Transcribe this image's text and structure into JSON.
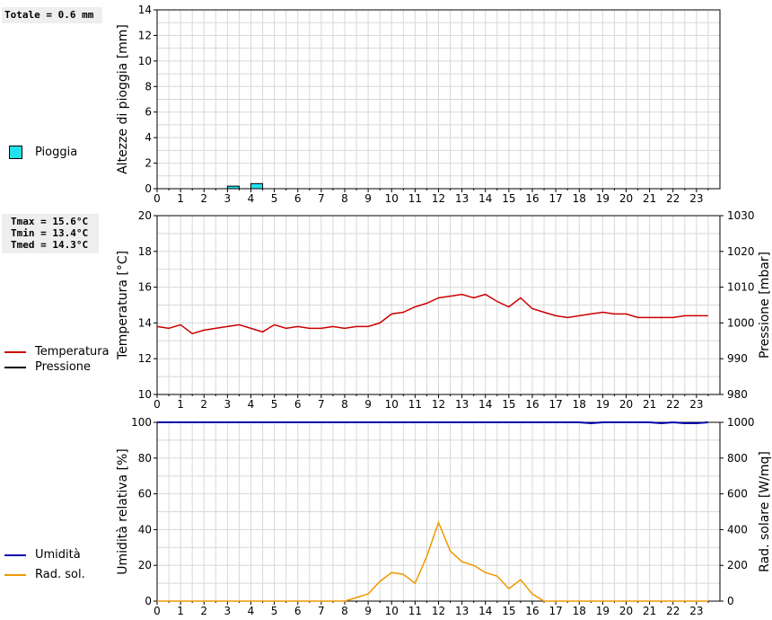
{
  "summary": {
    "rain_total": "Totale = 0.6 mm",
    "tmax": "Tmax = 15.6°C",
    "tmin": "Tmin = 13.4°C",
    "tmed": "Tmed = 14.3°C"
  },
  "legend": {
    "rain": "Pioggia",
    "temperature": "Temperatura",
    "pressure": "Pressione",
    "humidity": "Umidità",
    "solar": "Rad. sol."
  },
  "colors": {
    "rain": "#22e0ee",
    "temperature": "#cc0000",
    "pressure": "#000000",
    "humidity": "#0000aa",
    "solar": "#ee9900"
  },
  "chart_data": [
    {
      "type": "bar",
      "ylabel": "Altezze di pioggia [mm]",
      "ylim": [
        0,
        14
      ],
      "yticks": [
        0,
        2,
        4,
        6,
        8,
        10,
        12,
        14
      ],
      "xlim": [
        0,
        24
      ],
      "xticks": [
        "0",
        "1",
        "2",
        "3",
        "4",
        "5",
        "6",
        "7",
        "8",
        "9",
        "10",
        "11",
        "12",
        "13",
        "14",
        "15",
        "16",
        "17",
        "18",
        "19",
        "20",
        "21",
        "22",
        "23"
      ],
      "series": [
        {
          "name": "Pioggia",
          "x": [
            3.25,
            4.25
          ],
          "values": [
            0.2,
            0.4
          ]
        }
      ]
    },
    {
      "type": "line",
      "ylabel": "Temperatura [°C]",
      "y2label": "Pressione [mbar]",
      "ylim": [
        10,
        20
      ],
      "yticks": [
        10,
        12,
        14,
        16,
        18,
        20
      ],
      "y2lim": [
        980,
        1030
      ],
      "y2ticks": [
        980,
        990,
        1000,
        1010,
        1020,
        1030
      ],
      "xlim": [
        0,
        24
      ],
      "xticks": [
        "0",
        "1",
        "2",
        "3",
        "4",
        "5",
        "6",
        "7",
        "8",
        "9",
        "10",
        "11",
        "12",
        "13",
        "14",
        "15",
        "16",
        "17",
        "18",
        "19",
        "20",
        "21",
        "22",
        "23"
      ],
      "series": [
        {
          "name": "Temperatura",
          "x": [
            0,
            0.5,
            1,
            1.5,
            2,
            2.5,
            3,
            3.5,
            4,
            4.5,
            5,
            5.5,
            6,
            6.5,
            7,
            7.5,
            8,
            8.5,
            9,
            9.5,
            10,
            10.5,
            11,
            11.5,
            12,
            12.5,
            13,
            13.5,
            14,
            14.5,
            15,
            15.5,
            16,
            16.5,
            17,
            17.5,
            18,
            18.5,
            19,
            19.5,
            20,
            20.5,
            21,
            21.5,
            22,
            22.5,
            23,
            23.5
          ],
          "values": [
            13.8,
            13.7,
            13.9,
            13.4,
            13.6,
            13.7,
            13.8,
            13.9,
            13.7,
            13.5,
            13.9,
            13.7,
            13.8,
            13.7,
            13.7,
            13.8,
            13.7,
            13.8,
            13.8,
            14.0,
            14.5,
            14.6,
            14.9,
            15.1,
            15.4,
            15.5,
            15.6,
            15.4,
            15.6,
            15.2,
            14.9,
            15.4,
            14.8,
            14.6,
            14.4,
            14.3,
            14.4,
            14.5,
            14.6,
            14.5,
            14.5,
            14.3,
            14.3,
            14.3,
            14.3,
            14.4,
            14.4,
            14.4
          ]
        }
      ]
    },
    {
      "type": "line",
      "ylabel": "Umidità relativa [%]",
      "y2label": "Rad. solare [W/mq]",
      "ylim": [
        0,
        100
      ],
      "yticks": [
        0,
        20,
        40,
        60,
        80,
        100
      ],
      "y2lim": [
        0,
        1000
      ],
      "y2ticks": [
        0,
        200,
        400,
        600,
        800,
        1000
      ],
      "xlim": [
        0,
        24
      ],
      "xticks": [
        "0",
        "1",
        "2",
        "3",
        "4",
        "5",
        "6",
        "7",
        "8",
        "9",
        "10",
        "11",
        "12",
        "13",
        "14",
        "15",
        "16",
        "17",
        "18",
        "19",
        "20",
        "21",
        "22",
        "23"
      ],
      "series": [
        {
          "name": "Umidità",
          "x": [
            0,
            1,
            2,
            3,
            4,
            5,
            6,
            7,
            8,
            9,
            10,
            11,
            12,
            13,
            14,
            15,
            16,
            17,
            18,
            18.5,
            19,
            20,
            21,
            21.5,
            22,
            22.5,
            23,
            23.5
          ],
          "values": [
            100,
            100,
            100,
            100,
            100,
            100,
            100,
            100,
            100,
            100,
            100,
            100,
            100,
            100,
            100,
            100,
            100,
            100,
            100,
            99.5,
            100,
            100,
            100,
            99.5,
            100,
            99.5,
            99.5,
            100
          ],
          "axis": "left"
        },
        {
          "name": "Rad. sol.",
          "x": [
            0,
            0.5,
            1,
            1.5,
            2,
            2.5,
            3,
            3.5,
            4,
            4.5,
            5,
            5.5,
            6,
            6.5,
            7,
            7.5,
            8,
            8.5,
            9,
            9.5,
            10,
            10.5,
            11,
            11.5,
            12,
            12.5,
            13,
            13.5,
            14,
            14.5,
            15,
            15.5,
            16,
            16.5,
            17,
            17.5,
            18,
            18.5,
            19,
            19.5,
            20,
            20.5,
            21,
            21.5,
            22,
            22.5,
            23,
            23.5
          ],
          "values": [
            0,
            0,
            0,
            0,
            0,
            0,
            0,
            0,
            0,
            0,
            0,
            0,
            0,
            0,
            0,
            0,
            0,
            20,
            40,
            110,
            160,
            150,
            100,
            250,
            440,
            280,
            220,
            200,
            160,
            140,
            70,
            120,
            40,
            0,
            0,
            0,
            0,
            0,
            0,
            0,
            0,
            0,
            0,
            0,
            0,
            0,
            0,
            0
          ],
          "axis": "right"
        }
      ]
    }
  ]
}
